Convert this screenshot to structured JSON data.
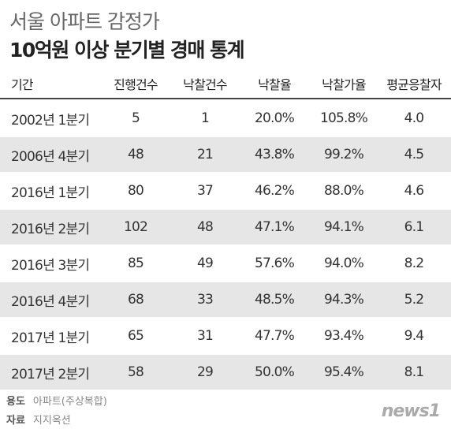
{
  "header": {
    "title": "서울 아파트 감정가",
    "subtitle": "10억원 이상 분기별 경매 통계"
  },
  "table": {
    "columns": [
      "기간",
      "진행건수",
      "낙찰건수",
      "낙찰율",
      "낙찰가율",
      "평균응찰자"
    ],
    "rows": [
      [
        "2002년 1분기",
        "5",
        "1",
        "20.0%",
        "105.8%",
        "4.0"
      ],
      [
        "2006년 4분기",
        "48",
        "21",
        "43.8%",
        "99.2%",
        "4.5"
      ],
      [
        "2016년 1분기",
        "80",
        "37",
        "46.2%",
        "88.0%",
        "4.6"
      ],
      [
        "2016년 2분기",
        "102",
        "48",
        "47.1%",
        "94.1%",
        "6.1"
      ],
      [
        "2016년 3분기",
        "85",
        "49",
        "57.6%",
        "94.0%",
        "8.2"
      ],
      [
        "2016년 4분기",
        "68",
        "33",
        "48.5%",
        "94.3%",
        "5.2"
      ],
      [
        "2017년 1분기",
        "65",
        "31",
        "47.7%",
        "93.4%",
        "9.4"
      ],
      [
        "2017년 2분기",
        "58",
        "29",
        "50.0%",
        "95.4%",
        "8.1"
      ]
    ]
  },
  "footer": {
    "notes": [
      {
        "key": "용도",
        "text": "아파트(주상복합)"
      },
      {
        "key": "자료",
        "text": "지지옥션"
      }
    ],
    "logo": "news1"
  }
}
